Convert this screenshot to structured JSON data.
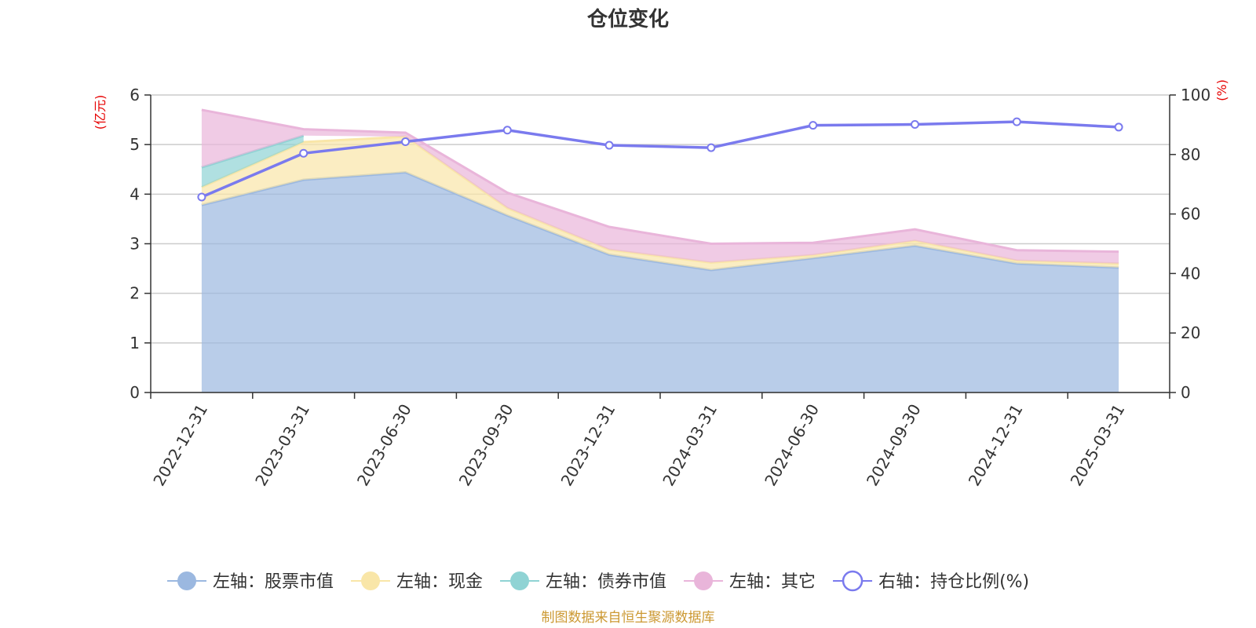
{
  "chart_data": {
    "type": "area",
    "title": "仓位变化",
    "left_axis_unit": "(亿元)",
    "right_axis_unit": "(%)",
    "ylim_left": [
      0,
      6
    ],
    "ylim_right": [
      0,
      100
    ],
    "left_ticks": [
      "0",
      "1",
      "2",
      "3",
      "4",
      "5",
      "6"
    ],
    "right_ticks": [
      "0",
      "20",
      "40",
      "60",
      "80",
      "100"
    ],
    "grid": true,
    "legend_position": "bottom",
    "categories": [
      "2022-12-31",
      "2023-03-31",
      "2023-06-30",
      "2023-09-30",
      "2023-12-31",
      "2024-03-31",
      "2024-06-30",
      "2024-09-30",
      "2024-12-31",
      "2025-03-31"
    ],
    "series": [
      {
        "name": "左轴：股票市值",
        "axis": "left",
        "type": "area",
        "color": "#9bb8e0",
        "values": [
          3.78,
          4.29,
          4.44,
          3.57,
          2.78,
          2.47,
          2.71,
          2.96,
          2.6,
          2.52
        ]
      },
      {
        "name": "左轴：现金",
        "axis": "left",
        "type": "area",
        "color": "#f9e6a8",
        "values": [
          0.36,
          0.76,
          0.72,
          0.15,
          0.1,
          0.15,
          0.06,
          0.1,
          0.06,
          0.08
        ]
      },
      {
        "name": "左轴：债券市值",
        "axis": "left",
        "type": "area",
        "color": "#8fd3d4",
        "values": [
          0.4,
          0.13,
          null,
          null,
          null,
          null,
          null,
          null,
          null,
          null
        ]
      },
      {
        "name": "左轴：其它",
        "axis": "left",
        "type": "area",
        "color": "#e9b5da",
        "values": [
          1.16,
          0.13,
          0.08,
          0.31,
          0.46,
          0.38,
          0.25,
          0.23,
          0.21,
          0.24
        ]
      },
      {
        "name": "右轴：持仓比例(%)",
        "axis": "right",
        "type": "line",
        "color": "#7a7aee",
        "values": [
          65.7,
          80.4,
          84.3,
          88.2,
          83.1,
          82.3,
          89.8,
          90.1,
          91.0,
          89.2
        ]
      }
    ],
    "source": "制图数据来自恒生聚源数据库"
  }
}
